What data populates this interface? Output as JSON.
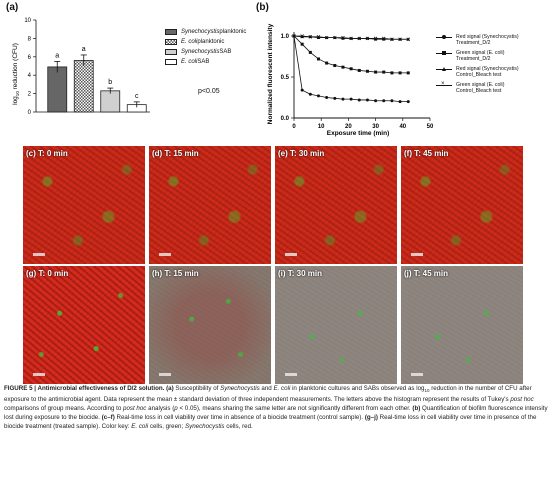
{
  "panel_a": {
    "letter": "(a)",
    "ylabel_pre": "log",
    "ylabel_sub": "10",
    "ylabel_post": " reduction (CFU)",
    "yticks": [
      "0",
      "2",
      "4",
      "6",
      "8",
      "10"
    ],
    "pvalue": "p<0.05",
    "legend": [
      {
        "italic": "Synechocystis",
        "rest": " planktonic",
        "swatch": "dark"
      },
      {
        "italic": "E. coli",
        "rest": " planktonic",
        "swatch": "check"
      },
      {
        "italic": "Synechocystis",
        "rest": " SAB",
        "swatch": "light"
      },
      {
        "italic": "E. coli",
        "rest": " SAB",
        "swatch": "white"
      }
    ]
  },
  "panel_b": {
    "letter": "(b)",
    "ylabel": "Normalized fluorescent intensity",
    "xlabel": "Exposure time (min)",
    "xticks": [
      "0",
      "10",
      "20",
      "30",
      "40",
      "50"
    ],
    "yticks": [
      "0.0",
      "0.5",
      "1.0"
    ],
    "legend": [
      {
        "line1": "Red signal (Synechocystis)",
        "line2": "Treatment_D/2",
        "marker": "circle"
      },
      {
        "line1": "Green signal (E. coli)",
        "line2": "Treatment_D/2",
        "marker": "square"
      },
      {
        "line1": "Red signal (Synechocystis)",
        "line2": "Control_Bleach test",
        "marker": "triangle"
      },
      {
        "line1": "Green signal (E. coli)",
        "line2": "Control_Bleach test",
        "marker": "x"
      }
    ]
  },
  "chart_data": [
    {
      "type": "bar",
      "categories": [
        "Synechocystis planktonic",
        "E. coli planktonic",
        "Synechocystis SAB",
        "E. coli SAB"
      ],
      "values": [
        4.9,
        5.6,
        2.3,
        0.8
      ],
      "errors": [
        0.6,
        0.6,
        0.3,
        0.3
      ],
      "letters": [
        "a",
        "a",
        "b",
        "c"
      ],
      "ylim": [
        0,
        10
      ],
      "xlabel": "",
      "ylabel": "log10 reduction (CFU)"
    },
    {
      "type": "line",
      "xlabel": "Exposure time (min)",
      "ylabel": "Normalized fluorescent intensity",
      "xlim": [
        0,
        50
      ],
      "ylim": [
        0,
        1.0
      ],
      "series": [
        {
          "name": "Red signal (Synechocystis) Treatment_D/2",
          "marker": "circle",
          "x": [
            0,
            3,
            6,
            9,
            12,
            15,
            18,
            21,
            24,
            27,
            30,
            33,
            36,
            39,
            42
          ],
          "y": [
            1.0,
            0.34,
            0.29,
            0.27,
            0.25,
            0.24,
            0.23,
            0.23,
            0.22,
            0.22,
            0.21,
            0.21,
            0.21,
            0.2,
            0.2
          ]
        },
        {
          "name": "Green signal (E. coli) Treatment_D/2",
          "marker": "square",
          "x": [
            0,
            3,
            6,
            9,
            12,
            15,
            18,
            21,
            24,
            27,
            30,
            33,
            36,
            39,
            42
          ],
          "y": [
            1.0,
            0.9,
            0.8,
            0.72,
            0.67,
            0.64,
            0.62,
            0.6,
            0.58,
            0.57,
            0.56,
            0.56,
            0.55,
            0.55,
            0.55
          ]
        },
        {
          "name": "Red signal (Synechocystis) Control_Bleach test",
          "marker": "triangle",
          "x": [
            0,
            3,
            6,
            9,
            12,
            15,
            18,
            21,
            24,
            27,
            30,
            33,
            36,
            39,
            42
          ],
          "y": [
            1.0,
            0.99,
            0.99,
            0.98,
            0.98,
            0.98,
            0.97,
            0.97,
            0.97,
            0.97,
            0.96,
            0.96,
            0.96,
            0.96,
            0.96
          ]
        },
        {
          "name": "Green signal (E. coli) Control_Bleach test",
          "marker": "x",
          "x": [
            0,
            3,
            6,
            9,
            12,
            15,
            18,
            21,
            24,
            27,
            30,
            33,
            36,
            39,
            42
          ],
          "y": [
            1.0,
            1.0,
            0.99,
            0.99,
            0.98,
            0.98,
            0.98,
            0.97,
            0.97,
            0.97,
            0.97,
            0.97,
            0.96,
            0.96,
            0.96
          ]
        }
      ]
    }
  ],
  "tiles": [
    {
      "label": "(c) T: 0 min",
      "texture": "top"
    },
    {
      "label": "(d) T: 15 min",
      "texture": "top"
    },
    {
      "label": "(e) T: 30 min",
      "texture": "top"
    },
    {
      "label": "(f) T: 45 min",
      "texture": "top"
    },
    {
      "label": "(g) T: 0 min",
      "texture": "g"
    },
    {
      "label": "(h) T: 15 min",
      "texture": "fade"
    },
    {
      "label": "(i) T: 30 min",
      "texture": "grey"
    },
    {
      "label": "(j) T: 45 min",
      "texture": "grey"
    }
  ],
  "caption": {
    "fig": "FIGURE 5 | Antimicrobial effectiveness of D/2 solution.",
    "a_label": "(a)",
    "a_text1": "Susceptibility of",
    "syn": "Synechocystis",
    "and": "and",
    "ecoli": "E. coli",
    "a_text2": "in planktonic cultures and SABs observed as log",
    "sub10": "10",
    "a_text3": "reduction in the number of CFU after exposure to the antimicrobial agent. Data represent the mean ± standard deviation of three independent measurements. The letters above the histogram represent the results of Tukey's",
    "posthoc": "post hoc",
    "a_text4": "comparisons of group means. According to",
    "posthoc2": "post hoc",
    "a_text5": "analysis (",
    "p_italic": "p",
    "a_text6": "< 0.05), means sharing the same letter are not significantly different from each other.",
    "b_label": "(b)",
    "b_text": "Quantification of biofilm fluorescence intensity lost during exposure to the biocide.",
    "cf_label": "(c–f)",
    "cf_text": "Real-time loss in cell viability over time in absence of a biocide treatment (control sample).",
    "gj_label": "(g–j)",
    "gj_text": "Real-time loss in cell viability over time in presence of the biocide treatment (treated sample). Color key:",
    "ecoli2": "E. coli",
    "key_green": "cells, green;",
    "syn2": "Synechocystis",
    "key_red": "cells, red."
  }
}
